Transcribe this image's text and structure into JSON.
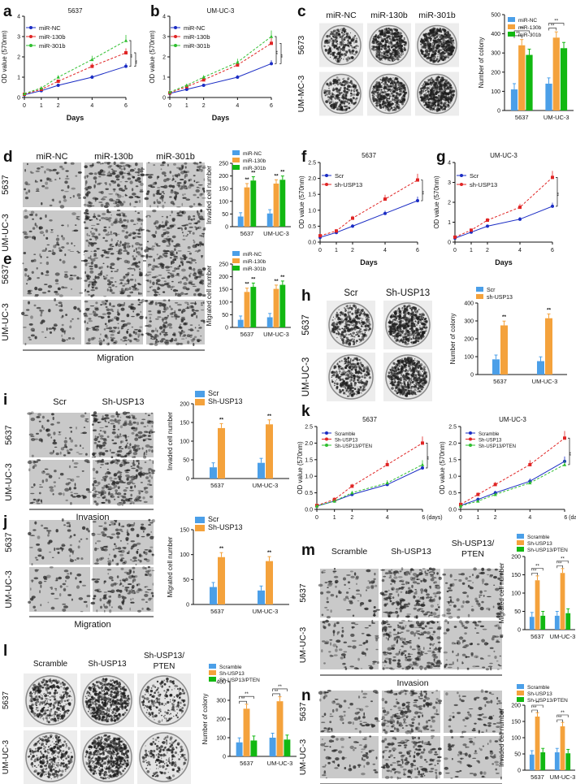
{
  "colors": {
    "blue": "#1a2cc4",
    "red": "#e02424",
    "green": "#2fbf2f",
    "bar_blue": "#4b9fe8",
    "bar_orange": "#f4a23c",
    "bar_green": "#12b812"
  },
  "letters": [
    "a",
    "b",
    "c",
    "d",
    "e",
    "f",
    "g",
    "h",
    "i",
    "j",
    "k",
    "l",
    "m",
    "n"
  ],
  "tick_labels": {
    "ag": [
      "0",
      "1",
      "2",
      "3",
      "4"
    ],
    "days": [
      "0",
      "1",
      "2",
      "4",
      "6"
    ],
    "k_days": [
      "0",
      "1",
      "2",
      "4",
      "6  (days)"
    ]
  },
  "axis": {
    "od": "OD value (570nm)",
    "days": "Days",
    "colony": "Number of colony",
    "invaded": "Invaded cell number",
    "migrated": "Migrated cell number"
  },
  "texts": {
    "sig": "**",
    "invasion": "Invasion",
    "migration": "Migration",
    "l_row1": "5637",
    "l_row2": "UM-UC-3"
  },
  "chart_data": [
    {
      "id": "a",
      "type": "line",
      "title": "5637",
      "xlabel": "Days",
      "ylabel": "OD value (570nm)",
      "x": [
        0,
        1,
        2,
        4,
        6
      ],
      "ylim": [
        0,
        3
      ],
      "series": [
        {
          "name": "miR-NC",
          "color": "blue",
          "values": [
            0.1,
            0.25,
            0.45,
            0.75,
            1.15
          ]
        },
        {
          "name": "miR-130b",
          "color": "red",
          "values": [
            0.12,
            0.3,
            0.6,
            1.15,
            1.65
          ]
        },
        {
          "name": "miR-301b",
          "color": "green",
          "values": [
            0.14,
            0.35,
            0.75,
            1.4,
            2.1
          ]
        }
      ],
      "sig": [
        "**",
        "**"
      ]
    },
    {
      "id": "b",
      "type": "line",
      "title": "UM-UC-3",
      "xlabel": "Days",
      "ylabel": "OD value (570nm)",
      "x": [
        0,
        1,
        2,
        4,
        6
      ],
      "ylim": [
        0,
        3
      ],
      "series": [
        {
          "name": "miR-NC",
          "color": "blue",
          "values": [
            0.15,
            0.3,
            0.45,
            0.75,
            1.25
          ]
        },
        {
          "name": "miR-130b",
          "color": "red",
          "values": [
            0.17,
            0.4,
            0.65,
            1.2,
            2.0
          ]
        },
        {
          "name": "miR-301b",
          "color": "green",
          "values": [
            0.2,
            0.45,
            0.75,
            1.3,
            2.25
          ]
        }
      ],
      "sig": [
        "**",
        "**"
      ]
    },
    {
      "id": "c",
      "type": "bar",
      "ylabel": "Number of colony",
      "categories": [
        "5637",
        "UM-UC-3"
      ],
      "ylim": [
        0,
        500
      ],
      "yticks": [
        "0",
        "100",
        "200",
        "300",
        "400",
        "500"
      ],
      "series": [
        {
          "name": "miR-NC",
          "color": "bar_blue",
          "values": [
            110,
            140
          ]
        },
        {
          "name": "miR-130b",
          "color": "bar_orange",
          "values": [
            340,
            380
          ]
        },
        {
          "name": "miR-301b",
          "color": "bar_green",
          "values": [
            290,
            325
          ]
        }
      ],
      "sig": [
        "**",
        "**",
        "**",
        "**"
      ]
    },
    {
      "id": "d",
      "type": "bar",
      "ylabel": "Invaded cell number",
      "categories": [
        "5637",
        "UM-UC-3"
      ],
      "ylim": [
        0,
        250
      ],
      "yticks": [
        "0",
        "50",
        "100",
        "150",
        "200",
        "250"
      ],
      "series": [
        {
          "name": "miR-NC",
          "color": "bar_blue",
          "values": [
            40,
            52
          ]
        },
        {
          "name": "miR-130b",
          "color": "bar_orange",
          "values": [
            155,
            170
          ]
        },
        {
          "name": "miR-301b",
          "color": "bar_green",
          "values": [
            182,
            185
          ]
        }
      ],
      "sig": [
        "**",
        "**",
        "**",
        "**"
      ]
    },
    {
      "id": "e",
      "type": "bar",
      "ylabel": "Migrated cell number",
      "categories": [
        "5637",
        "UM-UC-3"
      ],
      "ylim": [
        0,
        250
      ],
      "yticks": [
        "0",
        "50",
        "100",
        "150",
        "200",
        "250"
      ],
      "series": [
        {
          "name": "miR-NC",
          "color": "bar_blue",
          "values": [
            30,
            40
          ]
        },
        {
          "name": "miR-130b",
          "color": "bar_orange",
          "values": [
            140,
            152
          ]
        },
        {
          "name": "miR-301b",
          "color": "bar_green",
          "values": [
            160,
            168
          ]
        }
      ],
      "sig": [
        "**",
        "**",
        "**",
        "**"
      ]
    },
    {
      "id": "f",
      "type": "line",
      "title": "5637",
      "xlabel": "Days",
      "ylabel": "OD value (570nm)",
      "x": [
        0,
        1,
        2,
        4,
        6
      ],
      "ylim": [
        0,
        2.5
      ],
      "yticks": [
        "0.0",
        "0.5",
        "1.0",
        "1.5",
        "2.0",
        "2.5"
      ],
      "series": [
        {
          "name": "Scr",
          "color": "blue",
          "values": [
            0.15,
            0.3,
            0.5,
            0.9,
            1.3
          ]
        },
        {
          "name": "sh-USP13",
          "color": "red",
          "values": [
            0.2,
            0.35,
            0.75,
            1.35,
            1.95
          ]
        }
      ],
      "sig": [
        "**"
      ]
    },
    {
      "id": "g",
      "type": "line",
      "title": "UM-UC-3",
      "xlabel": "Days",
      "ylabel": "OD value (570nm)",
      "x": [
        0,
        1,
        2,
        4,
        6
      ],
      "ylim": [
        0,
        4
      ],
      "yticks": [
        "0",
        "1",
        "2",
        "3",
        "4"
      ],
      "series": [
        {
          "name": "Scr",
          "color": "blue",
          "values": [
            0.2,
            0.5,
            0.8,
            1.15,
            1.8
          ]
        },
        {
          "name": "sh-USP13",
          "color": "red",
          "values": [
            0.25,
            0.6,
            1.1,
            1.75,
            3.25
          ]
        }
      ],
      "sig": [
        "**"
      ]
    },
    {
      "id": "h",
      "type": "bar",
      "ylabel": "Number of colony",
      "categories": [
        "5637",
        "UM-UC-3"
      ],
      "ylim": [
        0,
        400
      ],
      "yticks": [
        "0",
        "100",
        "200",
        "300",
        "400"
      ],
      "series": [
        {
          "name": "Scr",
          "color": "bar_blue",
          "values": [
            85,
            75
          ]
        },
        {
          "name": "sh-USP13",
          "color": "bar_orange",
          "values": [
            275,
            315
          ]
        }
      ],
      "sig": [
        "**",
        "**"
      ]
    },
    {
      "id": "i",
      "type": "bar",
      "ylabel": "Invaded cell number",
      "categories": [
        "5637",
        "UM-UC-3"
      ],
      "ylim": [
        0,
        200
      ],
      "yticks": [
        "0",
        "50",
        "100",
        "150",
        "200"
      ],
      "series": [
        {
          "name": "Scr",
          "color": "bar_blue",
          "values": [
            30,
            42
          ]
        },
        {
          "name": "Sh-USP13",
          "color": "bar_orange",
          "values": [
            135,
            145
          ]
        }
      ],
      "sig": [
        "**",
        "**"
      ]
    },
    {
      "id": "j",
      "type": "bar",
      "ylabel": "Migrated cell number",
      "categories": [
        "5637",
        "UM-UC-3"
      ],
      "ylim": [
        0,
        150
      ],
      "yticks": [
        "0",
        "50",
        "100",
        "150"
      ],
      "series": [
        {
          "name": "Scr",
          "color": "bar_blue",
          "values": [
            35,
            28
          ]
        },
        {
          "name": "Sh-USP13",
          "color": "bar_orange",
          "values": [
            95,
            87
          ]
        }
      ],
      "sig": [
        "**",
        "**"
      ]
    },
    {
      "id": "k1",
      "type": "line",
      "title": "5637",
      "ylabel": "OD value (570nm)",
      "x": [
        0,
        1,
        2,
        4,
        6
      ],
      "ylim": [
        0,
        2.5
      ],
      "yticks": [
        "0.0",
        "0.5",
        "1.0",
        "1.5",
        "2.0",
        "2.5"
      ],
      "series": [
        {
          "name": "Scramble",
          "color": "blue",
          "values": [
            0.1,
            0.25,
            0.45,
            0.75,
            1.25
          ]
        },
        {
          "name": "Sh-USP13",
          "color": "red",
          "values": [
            0.12,
            0.3,
            0.7,
            1.35,
            2.0
          ]
        },
        {
          "name": "Sh-USP13/PTEN",
          "color": "green",
          "values": [
            0.1,
            0.25,
            0.5,
            0.8,
            1.35
          ]
        }
      ],
      "sig": [
        "**"
      ]
    },
    {
      "id": "k2",
      "type": "line",
      "title": "UM-UC-3",
      "ylabel": "OD value (570nm)",
      "x": [
        0,
        1,
        2,
        4,
        6
      ],
      "ylim": [
        0,
        2.5
      ],
      "yticks": [
        "0.0",
        "0.5",
        "1.0",
        "1.5",
        "2.0",
        "2.5"
      ],
      "series": [
        {
          "name": "Scramble",
          "color": "blue",
          "values": [
            0.12,
            0.3,
            0.5,
            0.85,
            1.45
          ]
        },
        {
          "name": "Sh-USP13",
          "color": "red",
          "values": [
            0.15,
            0.45,
            0.75,
            1.35,
            2.15
          ]
        },
        {
          "name": "Sh-USP13/PTEN",
          "color": "green",
          "values": [
            0.1,
            0.25,
            0.45,
            0.8,
            1.35
          ]
        }
      ],
      "sig": [
        "**"
      ]
    },
    {
      "id": "l",
      "type": "bar",
      "ylabel": "Number of colony",
      "categories": [
        "5637",
        "UM-UC-3"
      ],
      "ylim": [
        0,
        400
      ],
      "yticks": [
        "0",
        "100",
        "200",
        "300",
        "400"
      ],
      "series": [
        {
          "name": "Scramble",
          "color": "bar_blue",
          "values": [
            75,
            100
          ]
        },
        {
          "name": "Sh-USP13",
          "color": "bar_orange",
          "values": [
            255,
            295
          ]
        },
        {
          "name": "Sh-USP13/PTEN",
          "color": "bar_green",
          "values": [
            85,
            90
          ]
        }
      ],
      "sig": [
        "**",
        "**",
        "**",
        "**"
      ]
    },
    {
      "id": "m",
      "type": "bar",
      "ylabel": "Migrated cell number",
      "categories": [
        "5637",
        "UM-UC-3"
      ],
      "ylim": [
        0,
        200
      ],
      "yticks": [
        "0",
        "50",
        "100",
        "150",
        "200"
      ],
      "series": [
        {
          "name": "Scramble",
          "color": "bar_blue",
          "values": [
            35,
            38
          ]
        },
        {
          "name": "Sh-USP13",
          "color": "bar_orange",
          "values": [
            135,
            155
          ]
        },
        {
          "name": "Sh-USP13/PTEN",
          "color": "bar_green",
          "values": [
            38,
            45
          ]
        }
      ],
      "sig": [
        "**",
        "**",
        "**",
        "**"
      ]
    },
    {
      "id": "n",
      "type": "bar",
      "ylabel": "Invaded cell number",
      "categories": [
        "5637",
        "UM-UC-3"
      ],
      "ylim": [
        0,
        200
      ],
      "yticks": [
        "0",
        "50",
        "100",
        "150",
        "200"
      ],
      "series": [
        {
          "name": "Scramble",
          "color": "bar_blue",
          "values": [
            48,
            55
          ]
        },
        {
          "name": "Sh-USP13",
          "color": "bar_orange",
          "values": [
            165,
            135
          ]
        },
        {
          "name": "Sh-USP13/PTEN",
          "color": "bar_green",
          "values": [
            55,
            52
          ]
        }
      ],
      "sig": [
        "**",
        "**",
        "**",
        "**"
      ]
    }
  ],
  "image_panels": {
    "c": {
      "cols": [
        "miR-NC",
        "miR-130b",
        "miR-301b"
      ],
      "rows": [
        "5673",
        "UM-MC-3"
      ],
      "kind": "dish"
    },
    "d": {
      "cols": [
        "miR-NC",
        "miR-130b",
        "miR-301b"
      ],
      "rows": [
        "5637",
        "UM-UC-3"
      ],
      "kind": "field",
      "caption": "Invasion"
    },
    "e": {
      "rows": [
        "5637",
        "UM-UC-3"
      ],
      "kind": "field",
      "caption": "Migration"
    },
    "h": {
      "cols": [
        "Scr",
        "Sh-USP13"
      ],
      "rows": [
        "5637",
        "UM-UC-3"
      ],
      "kind": "dish"
    },
    "i": {
      "cols": [
        "Scr",
        "Sh-USP13"
      ],
      "rows": [
        "5637",
        "UM-UC-3"
      ],
      "kind": "field",
      "caption": "Invasion"
    },
    "j": {
      "rows": [
        "5637",
        "UM-UC-3"
      ],
      "kind": "field",
      "caption": "Migration"
    },
    "l": {
      "cols": [
        "Scramble",
        "Sh-USP13",
        "Sh-USP13/ PTEN"
      ],
      "rows": [
        "5637",
        "UM-UC-3"
      ],
      "kind": "dish"
    },
    "m": {
      "cols": [
        "Scramble",
        "Sh-USP13",
        "Sh-USP13/ PTEN"
      ],
      "rows": [
        "5637",
        "UM-UC-3"
      ],
      "kind": "field",
      "caption": "Invasion"
    },
    "n": {
      "rows": [
        "5637",
        "UM-UC-3"
      ],
      "kind": "field",
      "caption": "Migration"
    }
  }
}
